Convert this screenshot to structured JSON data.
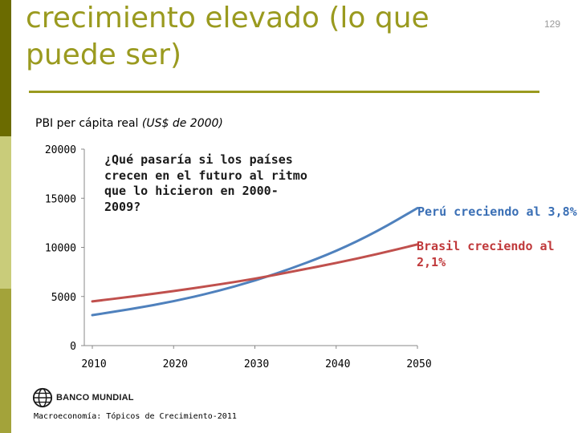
{
  "slide": {
    "title": "crecimiento elevado (lo que puede ser)",
    "page_number": "129",
    "footer": "Macroeconomía: Tópicos de Crecimiento-2011",
    "logo_text": "BANCO MUNDIAL",
    "colors": {
      "accent": "#9a9a1f",
      "sidebar_dark": "#6b6b00",
      "sidebar_light": "#c9cc7a"
    }
  },
  "chart_data": {
    "type": "line",
    "title": "PBI per cápita real",
    "title_unit": "(US$ de 2000)",
    "annotation": "¿Qué pasaría si los países crecen en el futuro al ritmo que lo hicieron en 2000-2009?",
    "xlim": [
      2010,
      2050
    ],
    "ylim": [
      0,
      20000
    ],
    "x_ticks": [
      2010,
      2020,
      2030,
      2040,
      2050
    ],
    "y_ticks": [
      0,
      5000,
      10000,
      15000,
      20000
    ],
    "x": [
      2010,
      2015,
      2020,
      2025,
      2030,
      2035,
      2040,
      2045,
      2050
    ],
    "series": [
      {
        "name": "Perú creciendo al 3,8%",
        "color": "#4f81bd",
        "values": [
          3100,
          3750,
          4500,
          5450,
          6600,
          8000,
          9600,
          11600,
          14000
        ]
      },
      {
        "name": "Brasil creciendo al 2,1%",
        "color": "#c0504d",
        "values": [
          4500,
          5000,
          5550,
          6150,
          6800,
          7600,
          8400,
          9300,
          10300
        ]
      }
    ],
    "grid": false
  }
}
